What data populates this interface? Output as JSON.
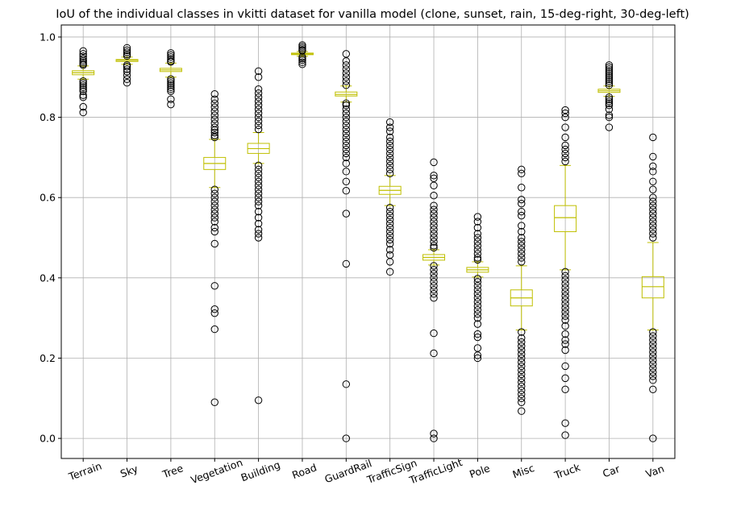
{
  "chart_data": {
    "type": "box",
    "title": "IoU of the individual classes in vkitti dataset for vanilla model (clone, sunset, rain, 15-deg-right, 30-deg-left)",
    "xlabel": "",
    "ylabel": "",
    "ylim": [
      -0.05,
      1.03
    ],
    "yticks": [
      0.0,
      0.2,
      0.4,
      0.6,
      0.8,
      1.0
    ],
    "grid": true,
    "box_color": "#bfbf00",
    "flier_color": "#000000",
    "categories": [
      "Terrain",
      "Sky",
      "Tree",
      "Vegetation",
      "Building",
      "Road",
      "GuardRail",
      "TrafficSign",
      "TrafficLight",
      "Pole",
      "Misc",
      "Truck",
      "Car",
      "Van"
    ],
    "boxes": [
      {
        "label": "Terrain",
        "whislo": 0.895,
        "q1": 0.906,
        "med": 0.911,
        "q3": 0.916,
        "whishi": 0.928,
        "fliers": [
          0.965,
          0.958,
          0.952,
          0.946,
          0.941,
          0.937,
          0.933,
          0.93,
          0.89,
          0.885,
          0.88,
          0.875,
          0.87,
          0.865,
          0.855,
          0.85,
          0.826,
          0.812
        ]
      },
      {
        "label": "Sky",
        "whislo": 0.932,
        "q1": 0.939,
        "med": 0.942,
        "q3": 0.944,
        "whishi": 0.95,
        "fliers": [
          0.973,
          0.967,
          0.962,
          0.957,
          0.953,
          0.93,
          0.926,
          0.92,
          0.914,
          0.905,
          0.895,
          0.886
        ]
      },
      {
        "label": "Tree",
        "whislo": 0.9,
        "q1": 0.914,
        "med": 0.918,
        "q3": 0.922,
        "whishi": 0.935,
        "fliers": [
          0.96,
          0.955,
          0.95,
          0.945,
          0.94,
          0.938,
          0.895,
          0.89,
          0.885,
          0.88,
          0.875,
          0.87,
          0.865,
          0.845,
          0.832
        ]
      },
      {
        "label": "Vegetation",
        "whislo": 0.625,
        "q1": 0.67,
        "med": 0.685,
        "q3": 0.7,
        "whishi": 0.745,
        "fliers": [
          0.858,
          0.845,
          0.835,
          0.825,
          0.815,
          0.805,
          0.795,
          0.785,
          0.775,
          0.768,
          0.762,
          0.755,
          0.75,
          0.62,
          0.61,
          0.6,
          0.59,
          0.58,
          0.57,
          0.56,
          0.55,
          0.54,
          0.525,
          0.515,
          0.485,
          0.38,
          0.322,
          0.312,
          0.272,
          0.09
        ]
      },
      {
        "label": "Building",
        "whislo": 0.685,
        "q1": 0.71,
        "med": 0.722,
        "q3": 0.735,
        "whishi": 0.762,
        "fliers": [
          0.915,
          0.9,
          0.87,
          0.86,
          0.85,
          0.84,
          0.83,
          0.82,
          0.81,
          0.8,
          0.79,
          0.78,
          0.77,
          0.68,
          0.67,
          0.66,
          0.65,
          0.64,
          0.63,
          0.62,
          0.61,
          0.6,
          0.59,
          0.58,
          0.565,
          0.55,
          0.535,
          0.52,
          0.51,
          0.5,
          0.095
        ]
      },
      {
        "label": "Road",
        "whislo": 0.952,
        "q1": 0.956,
        "med": 0.958,
        "q3": 0.96,
        "whishi": 0.964,
        "fliers": [
          0.98,
          0.976,
          0.972,
          0.968,
          0.966,
          0.95,
          0.946,
          0.942,
          0.937,
          0.932
        ]
      },
      {
        "label": "GuardRail",
        "whislo": 0.838,
        "q1": 0.853,
        "med": 0.857,
        "q3": 0.863,
        "whishi": 0.878,
        "fliers": [
          0.958,
          0.94,
          0.93,
          0.92,
          0.91,
          0.9,
          0.89,
          0.88,
          0.835,
          0.83,
          0.82,
          0.81,
          0.8,
          0.79,
          0.78,
          0.77,
          0.76,
          0.75,
          0.74,
          0.73,
          0.72,
          0.71,
          0.7,
          0.685,
          0.665,
          0.64,
          0.617,
          0.56,
          0.435,
          0.135,
          0.0
        ]
      },
      {
        "label": "TrafficSign",
        "whislo": 0.58,
        "q1": 0.608,
        "med": 0.618,
        "q3": 0.628,
        "whishi": 0.655,
        "fliers": [
          0.788,
          0.775,
          0.765,
          0.75,
          0.74,
          0.73,
          0.72,
          0.71,
          0.7,
          0.69,
          0.68,
          0.67,
          0.66,
          0.575,
          0.565,
          0.555,
          0.545,
          0.535,
          0.525,
          0.515,
          0.505,
          0.495,
          0.485,
          0.47,
          0.457,
          0.44,
          0.415
        ]
      },
      {
        "label": "TrafficLight",
        "whislo": 0.432,
        "q1": 0.444,
        "med": 0.451,
        "q3": 0.458,
        "whishi": 0.47,
        "fliers": [
          0.688,
          0.655,
          0.648,
          0.63,
          0.605,
          0.58,
          0.57,
          0.56,
          0.55,
          0.54,
          0.53,
          0.52,
          0.51,
          0.5,
          0.49,
          0.48,
          0.475,
          0.43,
          0.42,
          0.41,
          0.4,
          0.39,
          0.38,
          0.37,
          0.36,
          0.35,
          0.262,
          0.212,
          0.012,
          0.0
        ]
      },
      {
        "label": "Pole",
        "whislo": 0.402,
        "q1": 0.414,
        "med": 0.42,
        "q3": 0.426,
        "whishi": 0.44,
        "fliers": [
          0.552,
          0.54,
          0.525,
          0.51,
          0.5,
          0.49,
          0.48,
          0.47,
          0.46,
          0.45,
          0.445,
          0.398,
          0.39,
          0.38,
          0.37,
          0.36,
          0.35,
          0.34,
          0.33,
          0.32,
          0.31,
          0.3,
          0.285,
          0.26,
          0.252,
          0.225,
          0.207,
          0.2
        ]
      },
      {
        "label": "Misc",
        "whislo": 0.27,
        "q1": 0.33,
        "med": 0.35,
        "q3": 0.37,
        "whishi": 0.43,
        "fliers": [
          0.67,
          0.66,
          0.625,
          0.595,
          0.585,
          0.565,
          0.555,
          0.53,
          0.515,
          0.5,
          0.49,
          0.48,
          0.47,
          0.46,
          0.45,
          0.44,
          0.265,
          0.25,
          0.24,
          0.23,
          0.22,
          0.21,
          0.2,
          0.19,
          0.18,
          0.17,
          0.16,
          0.15,
          0.14,
          0.13,
          0.12,
          0.11,
          0.1,
          0.09,
          0.068
        ]
      },
      {
        "label": "Truck",
        "whislo": 0.42,
        "q1": 0.515,
        "med": 0.55,
        "q3": 0.58,
        "whishi": 0.68,
        "fliers": [
          0.818,
          0.81,
          0.8,
          0.775,
          0.75,
          0.73,
          0.72,
          0.71,
          0.7,
          0.69,
          0.415,
          0.405,
          0.395,
          0.385,
          0.375,
          0.365,
          0.355,
          0.345,
          0.335,
          0.325,
          0.315,
          0.305,
          0.295,
          0.28,
          0.26,
          0.245,
          0.235,
          0.22,
          0.18,
          0.15,
          0.122,
          0.038,
          0.008
        ]
      },
      {
        "label": "Car",
        "whislo": 0.852,
        "q1": 0.862,
        "med": 0.866,
        "q3": 0.87,
        "whishi": 0.878,
        "fliers": [
          0.93,
          0.925,
          0.92,
          0.915,
          0.91,
          0.905,
          0.9,
          0.895,
          0.89,
          0.885,
          0.88,
          0.85,
          0.845,
          0.84,
          0.835,
          0.83,
          0.82,
          0.805,
          0.8,
          0.775
        ]
      },
      {
        "label": "Van",
        "whislo": 0.27,
        "q1": 0.35,
        "med": 0.378,
        "q3": 0.403,
        "whishi": 0.488,
        "fliers": [
          0.75,
          0.702,
          0.678,
          0.665,
          0.64,
          0.62,
          0.6,
          0.59,
          0.58,
          0.57,
          0.56,
          0.55,
          0.54,
          0.53,
          0.52,
          0.51,
          0.5,
          0.265,
          0.255,
          0.245,
          0.235,
          0.225,
          0.215,
          0.205,
          0.195,
          0.185,
          0.175,
          0.165,
          0.155,
          0.145,
          0.122,
          0.0
        ]
      }
    ]
  }
}
